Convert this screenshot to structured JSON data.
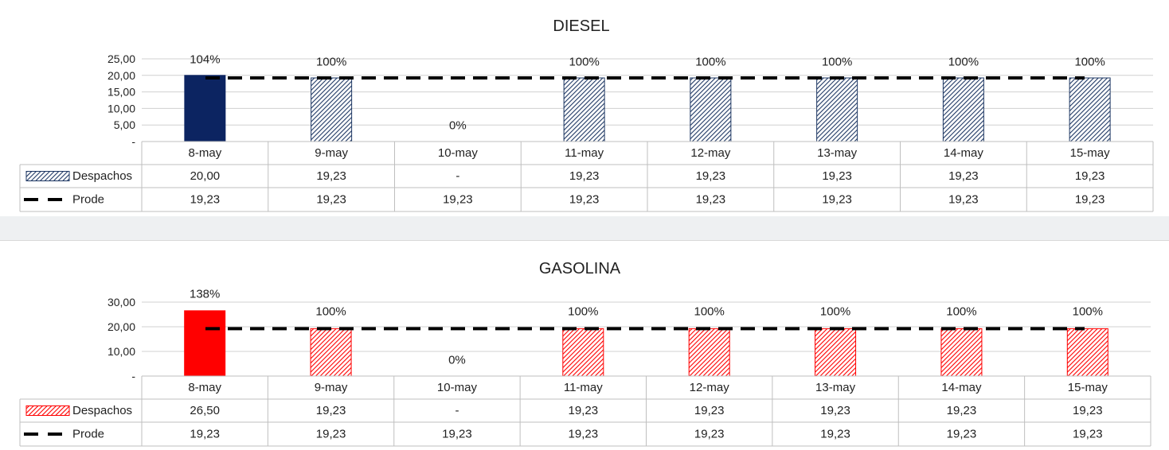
{
  "chart_data": [
    {
      "type": "bar",
      "title": "DIESEL",
      "categories": [
        "8-may",
        "9-may",
        "10-may",
        "11-may",
        "12-may",
        "13-may",
        "14-may",
        "15-may"
      ],
      "series": [
        {
          "name": "Despachos",
          "type": "bar",
          "values": [
            20.0,
            19.23,
            null,
            19.23,
            19.23,
            19.23,
            19.23,
            19.23
          ],
          "value_labels": [
            "20,00",
            "19,23",
            "-",
            "19,23",
            "19,23",
            "19,23",
            "19,23",
            "19,23"
          ]
        },
        {
          "name": "Prode",
          "type": "line-dashed",
          "values": [
            19.23,
            19.23,
            19.23,
            19.23,
            19.23,
            19.23,
            19.23,
            19.23
          ],
          "value_labels": [
            "19,23",
            "19,23",
            "19,23",
            "19,23",
            "19,23",
            "19,23",
            "19,23",
            "19,23"
          ]
        }
      ],
      "data_labels": [
        "104%",
        "100%",
        "0%",
        "100%",
        "100%",
        "100%",
        "100%",
        "100%"
      ],
      "ylim": [
        0,
        25
      ],
      "yticks": [
        0,
        5,
        10,
        15,
        20,
        25
      ],
      "ytick_labels": [
        "-",
        "5,00",
        "10,00",
        "15,00",
        "20,00",
        "25,00"
      ],
      "xlabel": "",
      "ylabel": "",
      "grid": true,
      "legend": "data-table",
      "colors": {
        "solid": "#0c2461",
        "hatch": "#1f3864"
      }
    },
    {
      "type": "bar",
      "title": "GASOLINA",
      "categories": [
        "8-may",
        "9-may",
        "10-may",
        "11-may",
        "12-may",
        "13-may",
        "14-may",
        "15-may"
      ],
      "series": [
        {
          "name": "Despachos",
          "type": "bar",
          "values": [
            26.5,
            19.23,
            null,
            19.23,
            19.23,
            19.23,
            19.23,
            19.23
          ],
          "value_labels": [
            "26,50",
            "19,23",
            "-",
            "19,23",
            "19,23",
            "19,23",
            "19,23",
            "19,23"
          ]
        },
        {
          "name": "Prode",
          "type": "line-dashed",
          "values": [
            19.23,
            19.23,
            19.23,
            19.23,
            19.23,
            19.23,
            19.23,
            19.23
          ],
          "value_labels": [
            "19,23",
            "19,23",
            "19,23",
            "19,23",
            "19,23",
            "19,23",
            "19,23",
            "19,23"
          ]
        }
      ],
      "data_labels": [
        "138%",
        "100%",
        "0%",
        "100%",
        "100%",
        "100%",
        "100%",
        "100%"
      ],
      "ylim": [
        0,
        30
      ],
      "yticks": [
        0,
        10,
        20,
        30
      ],
      "ytick_labels": [
        "-",
        "10,00",
        "20,00",
        "30,00"
      ],
      "xlabel": "",
      "ylabel": "",
      "grid": true,
      "legend": "data-table",
      "colors": {
        "solid": "#ff0000",
        "hatch": "#ff0000"
      }
    }
  ]
}
